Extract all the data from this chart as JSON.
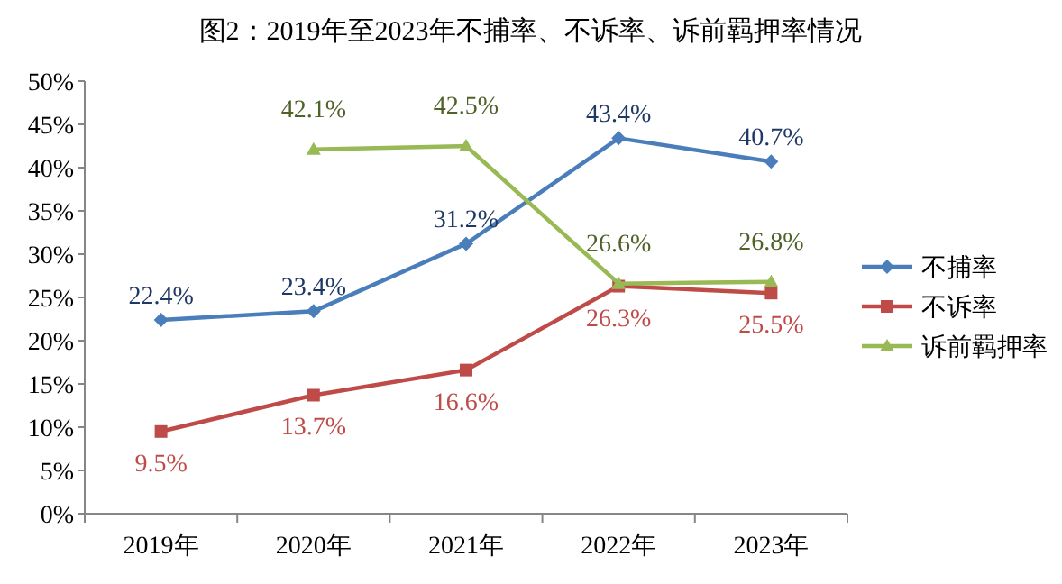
{
  "chart_data": {
    "type": "line",
    "title": "图2：2019年至2023年不捕率、不诉率、诉前羁押率情况",
    "categories": [
      "2019年",
      "2020年",
      "2021年",
      "2022年",
      "2023年"
    ],
    "series": [
      {
        "name": "不捕率",
        "color": "#4a7ebb",
        "marker": "diamond",
        "values": [
          22.4,
          23.4,
          31.2,
          43.4,
          40.7
        ],
        "value_labels": [
          "22.4%",
          "23.4%",
          "31.2%",
          "43.4%",
          "40.7%"
        ]
      },
      {
        "name": "不诉率",
        "color": "#be4b48",
        "marker": "square",
        "values": [
          9.5,
          13.7,
          16.6,
          26.3,
          25.5
        ],
        "value_labels": [
          "9.5%",
          "13.7%",
          "16.6%",
          "26.3%",
          "25.5%"
        ]
      },
      {
        "name": "诉前羁押率",
        "color": "#98b954",
        "marker": "triangle",
        "values": [
          null,
          42.1,
          42.5,
          26.6,
          26.8
        ],
        "value_labels": [
          null,
          "42.1%",
          "42.5%",
          "26.6%",
          "26.8%"
        ]
      }
    ],
    "ylim": [
      0,
      50
    ],
    "yticks": [
      {
        "value": 0,
        "label": "0%"
      },
      {
        "value": 5,
        "label": "5%"
      },
      {
        "value": 10,
        "label": "10%"
      },
      {
        "value": 15,
        "label": "15%"
      },
      {
        "value": 20,
        "label": "20%"
      },
      {
        "value": 25,
        "label": "25%"
      },
      {
        "value": 30,
        "label": "30%"
      },
      {
        "value": 35,
        "label": "35%"
      },
      {
        "value": 40,
        "label": "40%"
      },
      {
        "value": 45,
        "label": "45%"
      },
      {
        "value": 50,
        "label": "50%"
      }
    ],
    "legend": "right",
    "grid": false
  }
}
